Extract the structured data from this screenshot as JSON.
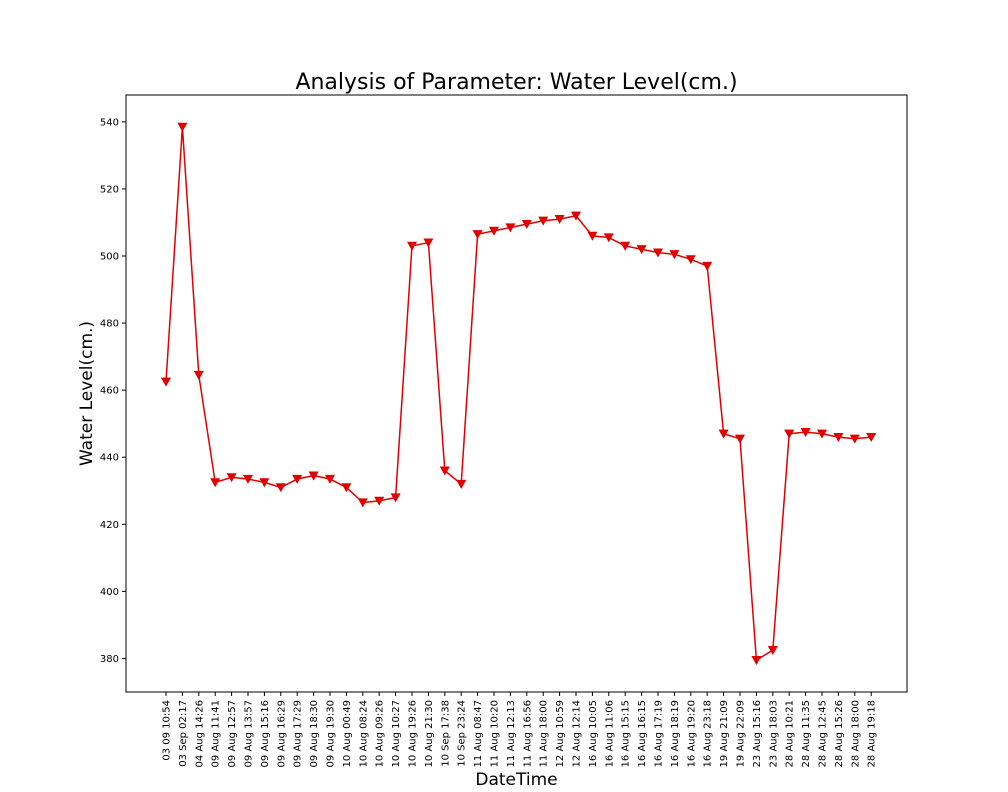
{
  "chart_data": {
    "type": "line",
    "title": "Analysis of Parameter: Water Level(cm.)",
    "xlabel": "DateTime",
    "ylabel": "Water Level(cm.)",
    "ylim": [
      370,
      548
    ],
    "yticks": [
      380,
      400,
      420,
      440,
      460,
      480,
      500,
      520,
      540
    ],
    "grid": false,
    "legend": "none",
    "colors": {
      "line": "#e00000",
      "marker": "#e00000",
      "axis": "#000000"
    },
    "marker": "triangle-down",
    "categories": [
      "03 09 10:54",
      "03 Sep 02:17",
      "04 Aug 14:26",
      "09 Aug 11:41",
      "09 Aug 12:57",
      "09 Aug 13:57",
      "09 Aug 15:16",
      "09 Aug 16:29",
      "09 Aug 17:29",
      "09 Aug 18:30",
      "09 Aug 19:30",
      "10 Aug 00:49",
      "10 Aug 08:24",
      "10 Aug 09:26",
      "10 Aug 10:27",
      "10 Aug 19:26",
      "10 Aug 21:30",
      "10 Sep 17:38",
      "10 Sep 23:24",
      "11 Aug 08:47",
      "11 Aug 10:20",
      "11 Aug 12:13",
      "11 Aug 16:56",
      "11 Aug 18:00",
      "12 Aug 10:59",
      "12 Aug 12:14",
      "16 Aug 10:05",
      "16 Aug 11:06",
      "16 Aug 15:15",
      "16 Aug 16:15",
      "16 Aug 17:19",
      "16 Aug 18:19",
      "16 Aug 19:20",
      "16 Aug 23:18",
      "19 Aug 21:09",
      "19 Aug 22:09",
      "23 Aug 15:16",
      "23 Aug 18:03",
      "28 Aug 10:21",
      "28 Aug 11:35",
      "28 Aug 12:45",
      "28 Aug 15:26",
      "28 Aug 18:00",
      "28 Aug 19:18"
    ],
    "series": [
      {
        "values": [
          462.5,
          538.5,
          464.5,
          432.5,
          434.0,
          433.5,
          432.5,
          431.0,
          433.5,
          434.5,
          433.5,
          431.0,
          426.5,
          427.0,
          428.0,
          503.0,
          504.0,
          436.0,
          432.0,
          506.5,
          507.5,
          508.5,
          509.5,
          510.5,
          511.0,
          512.0,
          506.0,
          505.5,
          503.0,
          502.0,
          501.0,
          500.5,
          499.0,
          497.0,
          447.0,
          445.5,
          379.5,
          382.5,
          447.0,
          447.5,
          447.0,
          446.0,
          445.5,
          446.0
        ]
      }
    ]
  }
}
